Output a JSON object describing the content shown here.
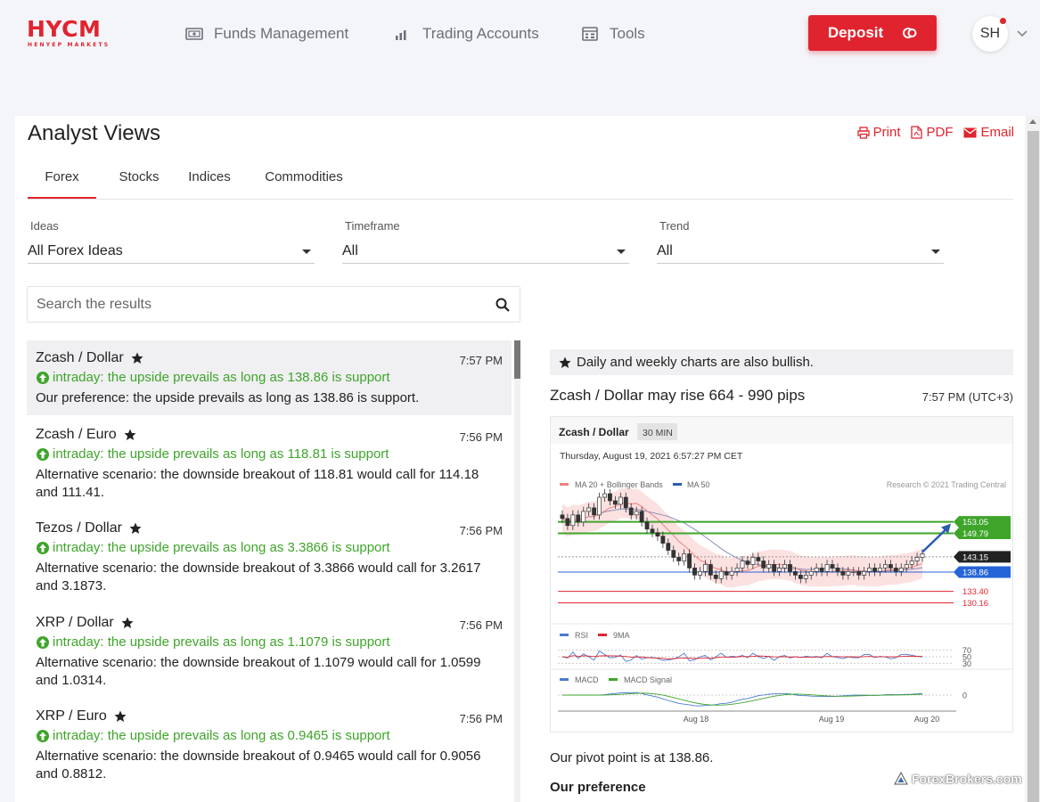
{
  "colors": {
    "brand": "#e0242f",
    "bullish": "#3ea52a",
    "support_line": "#2563d8"
  },
  "header": {
    "logo_main": "HYCM",
    "logo_sub": "HENYEP MARKETS",
    "nav": [
      {
        "label": "Funds Management",
        "icon": "wallet-icon"
      },
      {
        "label": "Trading Accounts",
        "icon": "bar-chart-icon"
      },
      {
        "label": "Tools",
        "icon": "calculator-icon"
      }
    ],
    "deposit_label": "Deposit",
    "avatar_initials": "SH"
  },
  "page": {
    "title": "Analyst Views",
    "actions": [
      {
        "label": "Print",
        "icon": "print-icon"
      },
      {
        "label": "PDF",
        "icon": "pdf-icon"
      },
      {
        "label": "Email",
        "icon": "email-icon"
      }
    ],
    "tabs": [
      "Forex",
      "Stocks",
      "Indices",
      "Commodities"
    ],
    "active_tab": "Forex"
  },
  "filters": [
    {
      "label": "Ideas",
      "value": "All Forex Ideas"
    },
    {
      "label": "Timeframe",
      "value": "All"
    },
    {
      "label": "Trend",
      "value": "All"
    }
  ],
  "search": {
    "placeholder": "Search the results"
  },
  "ideas": [
    {
      "title": "Zcash / Dollar",
      "time": "7:57 PM",
      "signal": "intraday: the upside prevails as long as 138.86 is support",
      "desc": "Our preference: the upside prevails as long as 138.86 is support."
    },
    {
      "title": "Zcash / Euro",
      "time": "7:56 PM",
      "signal": "intraday: the upside prevails as long as 118.81 is support",
      "desc": "Alternative scenario: the downside breakout of 118.81 would call for 114.18 and 111.41."
    },
    {
      "title": "Tezos / Dollar",
      "time": "7:56 PM",
      "signal": "intraday: the upside prevails as long as 3.3866 is support",
      "desc": "Alternative scenario: the downside breakout of 3.3866 would call for 3.2617 and 3.1873."
    },
    {
      "title": "XRP / Dollar",
      "time": "7:56 PM",
      "signal": "intraday: the upside prevails as long as 1.1079 is support",
      "desc": "Alternative scenario: the downside breakout of 1.1079 would call for 1.0599 and 1.0314."
    },
    {
      "title": "XRP / Euro",
      "time": "7:56 PM",
      "signal": "intraday: the upside prevails as long as 0.9465 is support",
      "desc": "Alternative scenario: the downside breakout of 0.9465 would call for 0.9056 and 0.8812."
    }
  ],
  "detail": {
    "banner": "Daily and weekly charts are also bullish.",
    "title": "Zcash / Dollar may rise 664 - 990 pips",
    "time": "7:57 PM (UTC+3)",
    "pivot": "Our pivot point is at 138.86.",
    "preference_heading": "Our preference"
  },
  "chart_data": {
    "type": "candlestick",
    "instrument": "Zcash / Dollar",
    "timeframe": "30 MIN",
    "timestamp": "Thursday, August 19, 2021 6:57:27 PM CET",
    "credit": "Research © 2021 Trading Central",
    "legend": [
      "MA 20 + Bollinger Bands",
      "MA 50"
    ],
    "legend_colors": [
      "#f08080",
      "#2a5db0"
    ],
    "levels": [
      {
        "value": 153.05,
        "label": "153.05",
        "style": "resistance-target",
        "color": "#3ea52a"
      },
      {
        "value": 149.79,
        "label": "149.79",
        "style": "resistance-target",
        "color": "#3ea52a"
      },
      {
        "value": 143.15,
        "label": "143.15",
        "style": "last-price",
        "color": "#222222"
      },
      {
        "value": 138.86,
        "label": "138.86",
        "style": "pivot",
        "color": "#2563d8"
      },
      {
        "value": 133.4,
        "label": "133.40",
        "style": "support",
        "color": "#e0242f"
      },
      {
        "value": 130.16,
        "label": "130.16",
        "style": "support",
        "color": "#e0242f"
      }
    ],
    "price_range": [
      126,
      160
    ],
    "close": [
      154,
      152,
      155,
      153,
      156,
      157,
      155,
      160,
      161,
      159,
      158,
      160,
      157,
      155,
      156,
      153,
      151,
      150,
      149,
      147,
      145,
      143,
      142,
      144,
      140,
      138,
      139,
      141,
      138,
      137,
      139,
      138,
      139,
      140,
      142,
      141,
      143,
      142,
      140,
      141,
      139,
      140,
      141,
      139,
      138,
      137,
      138,
      139,
      140,
      139,
      141,
      140,
      139,
      138,
      139,
      139,
      138,
      139,
      140,
      139,
      140,
      141,
      140,
      139,
      140,
      141,
      142,
      143,
      144
    ],
    "x_ticks": [
      "Aug 18",
      "Aug 19",
      "Aug 20"
    ],
    "rsi_legend": [
      "RSI",
      "9MA"
    ],
    "rsi_legend_colors": [
      "#4a7bd0",
      "#e0242f"
    ],
    "rsi_levels": [
      70,
      50,
      30
    ],
    "macd_legend": [
      "MACD",
      "MACD Signal"
    ],
    "macd_legend_colors": [
      "#4a7bd0",
      "#3ea52a"
    ],
    "macd_zero": 0
  },
  "watermark": "ForexBrokers.com"
}
